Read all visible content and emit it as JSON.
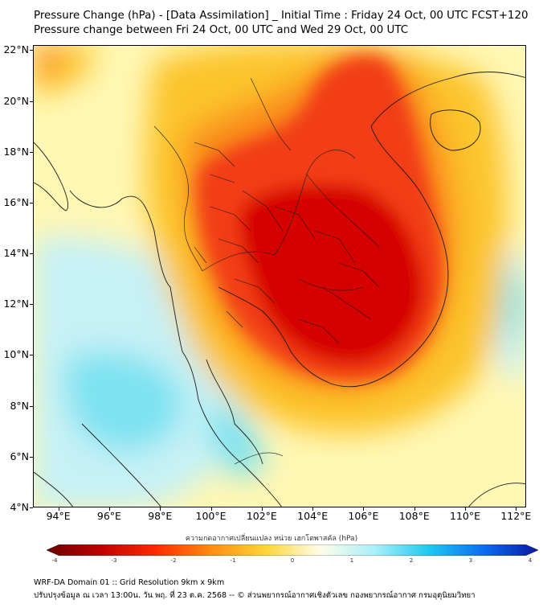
{
  "header": {
    "title": "Pressure Change (hPa) - [Data Assimilation] _ Initial Time : Friday 24 Oct, 00 UTC FCST+120",
    "subtitle": "Pressure change between Fri 24 Oct, 00 UTC and Wed 29 Oct, 00 UTC"
  },
  "map": {
    "lat_labels": [
      "22°N",
      "20°N",
      "18°N",
      "16°N",
      "14°N",
      "12°N",
      "10°N",
      "8°N",
      "6°N",
      "4°N"
    ],
    "lat_values": [
      22,
      20,
      18,
      16,
      14,
      12,
      10,
      8,
      6,
      4
    ],
    "lon_labels": [
      "94°E",
      "96°E",
      "98°E",
      "100°E",
      "102°E",
      "104°E",
      "106°E",
      "108°E",
      "110°E",
      "112°E"
    ],
    "lon_values": [
      94,
      96,
      98,
      100,
      102,
      104,
      106,
      108,
      110,
      112
    ],
    "extent": {
      "lon_min": 93,
      "lon_max": 112.4,
      "lat_min": 4,
      "lat_max": 22.2
    },
    "colors": {
      "deep_fall": "#d50000",
      "fall": "#f23d12",
      "moderate_fall": "#f98a1c",
      "slight_fall": "#fcc42a",
      "near_zero": "#fff7b4",
      "slight_rise": "#c6f1f6",
      "rise": "#7ee2f0",
      "coast": "#1a1a1a"
    }
  },
  "colorbar": {
    "label": "ความกดอากาศเปลี่ยนแปลง หน่วย เฮกโตพาสคัล (hPa)",
    "ticks": [
      "-4",
      "-3",
      "-2",
      "-1",
      "0",
      "1",
      "2",
      "3",
      "4"
    ],
    "colors": [
      "#6b0000",
      "#c00000",
      "#ff2a00",
      "#ff8c10",
      "#ffd535",
      "#fffce8",
      "#aaf0fa",
      "#1ec8f0",
      "#0b6cf0",
      "#0a18a6"
    ]
  },
  "footer": {
    "line1": "WRF-DA Domain 01 :: Grid Resolution 9km x 9km",
    "line2": "ปรับปรุงข้อมูล ณ เวลา 13:00น. วัน พฤ. ที่ 23 ต.ค. 2568 -- © ส่วนพยากรณ์อากาศเชิงตัวเลข กองพยากรณ์อากาศ กรมอุตุนิยมวิทยา"
  }
}
